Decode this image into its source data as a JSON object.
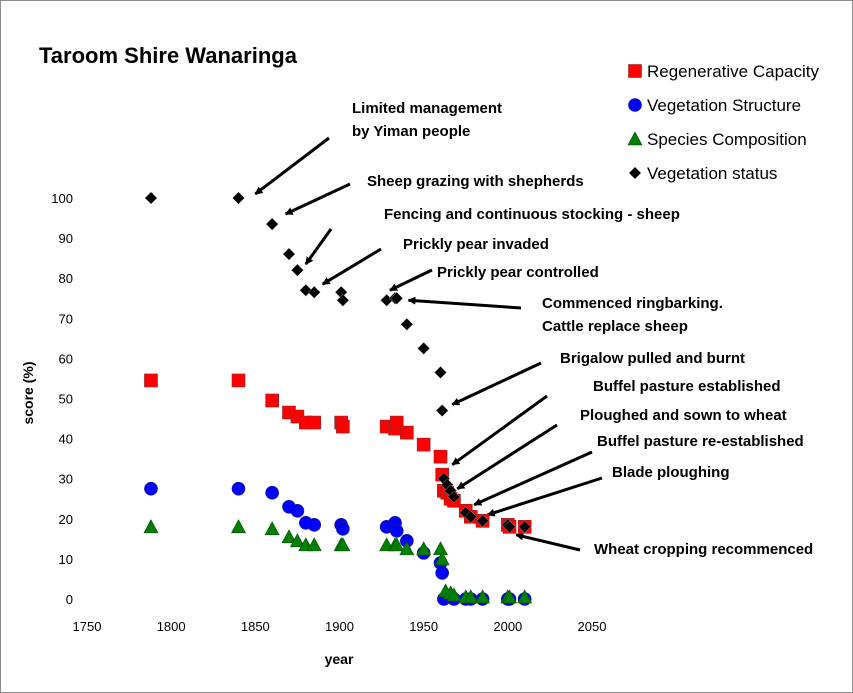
{
  "chart_data": {
    "type": "scatter",
    "title": "Taroom Shire Wanaringa",
    "xlabel": "year",
    "ylabel": "score (%)",
    "xlim": [
      1750,
      2050
    ],
    "ylim": [
      0,
      100
    ],
    "xticks": [
      1750,
      1800,
      1850,
      1900,
      1950,
      2000,
      2050
    ],
    "yticks": [
      0,
      10,
      20,
      30,
      40,
      50,
      60,
      70,
      80,
      90,
      100
    ],
    "grid": false,
    "legend_position": "top-right",
    "series": [
      {
        "name": "Regenerative Capacity",
        "marker": "square",
        "color": "#ff0000",
        "points": [
          [
            1788,
            54.5
          ],
          [
            1840,
            54.5
          ],
          [
            1860,
            49.5
          ],
          [
            1870,
            46.5
          ],
          [
            1875,
            45.5
          ],
          [
            1880,
            44
          ],
          [
            1885,
            44
          ],
          [
            1901,
            44
          ],
          [
            1902,
            43
          ],
          [
            1928,
            43
          ],
          [
            1933,
            42.5
          ],
          [
            1934,
            44
          ],
          [
            1940,
            41.5
          ],
          [
            1950,
            38.5
          ],
          [
            1960,
            35.5
          ],
          [
            1961,
            31
          ],
          [
            1962,
            27
          ],
          [
            1964,
            26.5
          ],
          [
            1966,
            25
          ],
          [
            1968,
            24.5
          ],
          [
            1975,
            22
          ],
          [
            1978,
            20.5
          ],
          [
            1985,
            19.5
          ],
          [
            2000,
            18.5
          ],
          [
            2001,
            18
          ],
          [
            2010,
            18
          ]
        ]
      },
      {
        "name": "Vegetation Structure",
        "marker": "circle",
        "color": "#0000ff",
        "points": [
          [
            1788,
            27.5
          ],
          [
            1840,
            27.5
          ],
          [
            1860,
            26.5
          ],
          [
            1870,
            23
          ],
          [
            1875,
            22
          ],
          [
            1880,
            19
          ],
          [
            1885,
            18.5
          ],
          [
            1901,
            18.5
          ],
          [
            1902,
            17.5
          ],
          [
            1928,
            18
          ],
          [
            1933,
            19
          ],
          [
            1934,
            17
          ],
          [
            1940,
            14.5
          ],
          [
            1950,
            11.5
          ],
          [
            1960,
            9
          ],
          [
            1961,
            6.5
          ],
          [
            1962,
            0
          ],
          [
            1968,
            0
          ],
          [
            1975,
            0
          ],
          [
            1978,
            0
          ],
          [
            1985,
            0
          ],
          [
            2000,
            0
          ],
          [
            2001,
            0
          ],
          [
            2010,
            0
          ]
        ]
      },
      {
        "name": "Species Composition",
        "marker": "triangle",
        "color": "#008000",
        "points": [
          [
            1788,
            18
          ],
          [
            1840,
            18
          ],
          [
            1860,
            17.5
          ],
          [
            1870,
            15.5
          ],
          [
            1875,
            14.5
          ],
          [
            1880,
            13.5
          ],
          [
            1885,
            13.5
          ],
          [
            1901,
            13.5
          ],
          [
            1902,
            13.5
          ],
          [
            1928,
            13.5
          ],
          [
            1933,
            13.5
          ],
          [
            1934,
            13.5
          ],
          [
            1940,
            12.5
          ],
          [
            1950,
            12.5
          ],
          [
            1960,
            12.5
          ],
          [
            1961,
            10
          ],
          [
            1963,
            2
          ],
          [
            1966,
            1.5
          ],
          [
            1968,
            1
          ],
          [
            1975,
            0.5
          ],
          [
            1978,
            0.5
          ],
          [
            1985,
            0.5
          ],
          [
            2000,
            0.5
          ],
          [
            2001,
            0.5
          ],
          [
            2010,
            0.5
          ]
        ]
      },
      {
        "name": "Vegetation status",
        "marker": "diamond",
        "color": "#000000",
        "points": [
          [
            1788,
            100
          ],
          [
            1840,
            100
          ],
          [
            1860,
            93.5
          ],
          [
            1870,
            86
          ],
          [
            1875,
            82
          ],
          [
            1880,
            77
          ],
          [
            1885,
            76.5
          ],
          [
            1901,
            76.5
          ],
          [
            1902,
            74.5
          ],
          [
            1928,
            74.5
          ],
          [
            1933,
            75
          ],
          [
            1934,
            75
          ],
          [
            1940,
            68.5
          ],
          [
            1950,
            62.5
          ],
          [
            1960,
            56.5
          ],
          [
            1961,
            47
          ],
          [
            1962,
            30
          ],
          [
            1964,
            28.5
          ],
          [
            1966,
            27
          ],
          [
            1968,
            25.5
          ],
          [
            1975,
            21.5
          ],
          [
            1978,
            20.5
          ],
          [
            1985,
            19.5
          ],
          [
            2000,
            18.5
          ],
          [
            2001,
            18
          ],
          [
            2010,
            18
          ]
        ]
      }
    ],
    "annotations": [
      {
        "text": [
          "Limited management",
          "by Yiman people"
        ],
        "target": [
          1850,
          101
        ]
      },
      {
        "text": [
          "Sheep grazing with shepherds"
        ],
        "target": [
          1868,
          96
        ]
      },
      {
        "text": [
          "Fencing and continuous stocking - sheep"
        ],
        "target": [
          1880,
          83.5
        ]
      },
      {
        "text": [
          "Prickly pear invaded"
        ],
        "target": [
          1890,
          78.5
        ]
      },
      {
        "text": [
          "Prickly pear controlled"
        ],
        "target": [
          1930,
          77
        ]
      },
      {
        "text": [
          "Commenced ringbarking.",
          "Cattle replace sheep"
        ],
        "target": [
          1941,
          74.5
        ]
      },
      {
        "text": [
          "Brigalow pulled and burnt"
        ],
        "target": [
          1967,
          48.5
        ]
      },
      {
        "text": [
          "Buffel pasture established"
        ],
        "target": [
          1967,
          33.5
        ]
      },
      {
        "text": [
          "Ploughed and sown to wheat"
        ],
        "target": [
          1970,
          27.5
        ]
      },
      {
        "text": [
          "Buffel pasture re-established"
        ],
        "target": [
          1980,
          23.5
        ]
      },
      {
        "text": [
          "Blade ploughing"
        ],
        "target": [
          1988,
          21
        ]
      },
      {
        "text": [
          "Wheat cropping recommenced"
        ],
        "target": [
          2005,
          16
        ]
      }
    ]
  }
}
